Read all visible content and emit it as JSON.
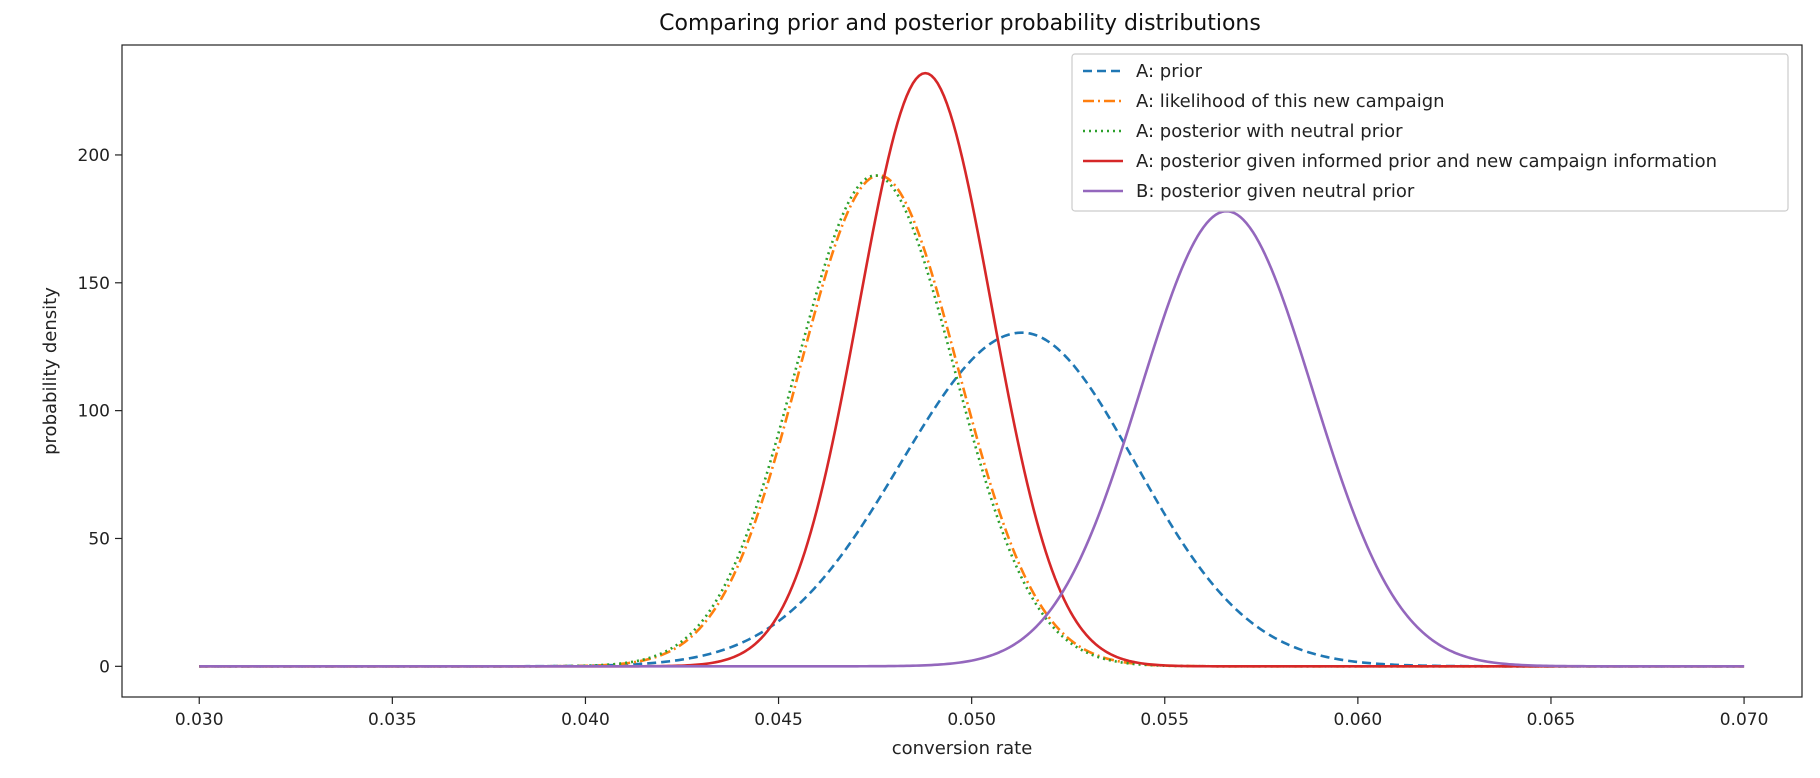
{
  "chart_data": {
    "type": "line",
    "title": "Comparing prior and posterior probability distributions",
    "xlabel": "conversion rate",
    "ylabel": "probability density",
    "xlim": [
      0.028,
      0.0715
    ],
    "ylim": [
      -12,
      243
    ],
    "xticks": [
      0.03,
      0.035,
      0.04,
      0.045,
      0.05,
      0.055,
      0.06,
      0.065,
      0.07
    ],
    "xtick_labels": [
      "0.030",
      "0.035",
      "0.040",
      "0.045",
      "0.050",
      "0.055",
      "0.060",
      "0.065",
      "0.070"
    ],
    "yticks": [
      0,
      50,
      100,
      150,
      200
    ],
    "ytick_labels": [
      "0",
      "50",
      "100",
      "150",
      "200"
    ],
    "grid": false,
    "legend_position": "top-right",
    "x_range": [
      0.03,
      0.07
    ],
    "series": [
      {
        "name": "A: prior",
        "color": "#1f77b4",
        "style": "dashed",
        "peak_x": 0.0513,
        "peak_y": 130.5,
        "width_left": 0.00315,
        "width_right": 0.00295
      },
      {
        "name": "A: likelihood of this new campaign",
        "color": "#ff7f0e",
        "style": "dashdot",
        "peak_x": 0.0476,
        "peak_y": 192,
        "width_left": 0.00205,
        "width_right": 0.00205
      },
      {
        "name": "A: posterior with neutral prior",
        "color": "#2ca02c",
        "style": "dotted",
        "peak_x": 0.0475,
        "peak_y": 192,
        "width_left": 0.00205,
        "width_right": 0.00205
      },
      {
        "name": "A: posterior given informed prior and new campaign information",
        "color": "#d62728",
        "style": "solid",
        "peak_x": 0.0488,
        "peak_y": 232,
        "width_left": 0.00172,
        "width_right": 0.00172
      },
      {
        "name": "B: posterior given neutral prior",
        "color": "#9467bd",
        "style": "solid",
        "peak_x": 0.0566,
        "peak_y": 178,
        "width_left": 0.00223,
        "width_right": 0.00223
      }
    ]
  }
}
